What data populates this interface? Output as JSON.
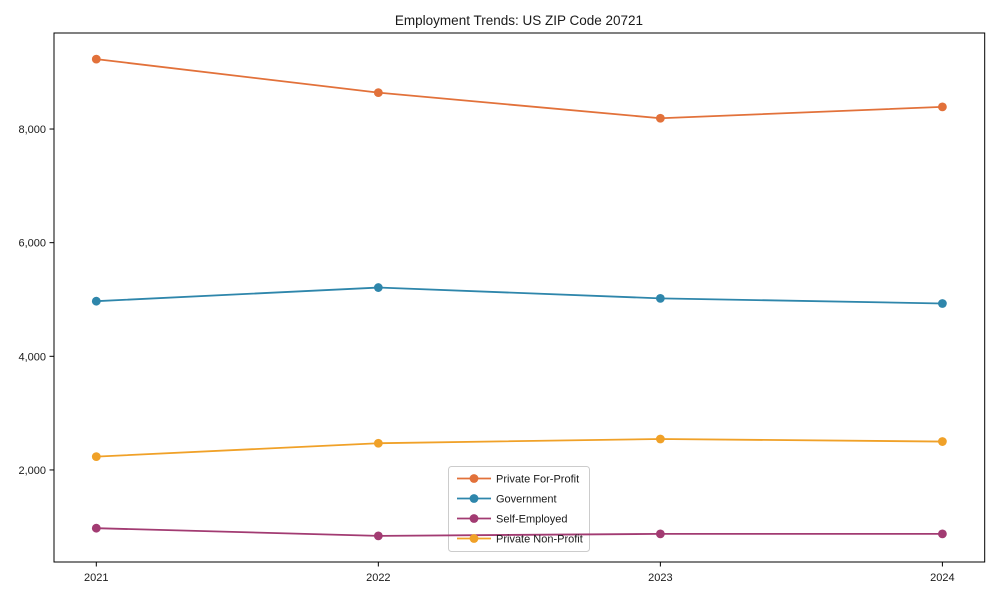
{
  "chart_data": {
    "type": "line",
    "title": "Employment Trends: US ZIP Code 20721",
    "categories": [
      "2021",
      "2022",
      "2023",
      "2024"
    ],
    "series": [
      {
        "name": "Private For-Profit",
        "color": "#E2713A",
        "values": [
          9230,
          8640,
          8190,
          8390
        ]
      },
      {
        "name": "Government",
        "color": "#2E86AB",
        "values": [
          4970,
          5210,
          5020,
          4930
        ]
      },
      {
        "name": "Self-Employed",
        "color": "#A23B72",
        "values": [
          975,
          840,
          875,
          875
        ]
      },
      {
        "name": "Private Non-Profit",
        "color": "#F0A128",
        "values": [
          2235,
          2470,
          2545,
          2500
        ]
      }
    ],
    "xlabel": "",
    "ylabel": "",
    "y_ticks": [
      2000,
      4000,
      6000,
      8000
    ],
    "y_tick_labels": [
      "2,000",
      "4,000",
      "6,000",
      "8,000"
    ],
    "ylim": [
      380,
      9690
    ],
    "grid": false,
    "legend": {
      "position": "inside-bottom-center",
      "entries": [
        "Private For-Profit",
        "Government",
        "Self-Employed",
        "Private Non-Profit"
      ]
    },
    "axis_color": "#000000",
    "legend_border_color": "#cccccc"
  }
}
